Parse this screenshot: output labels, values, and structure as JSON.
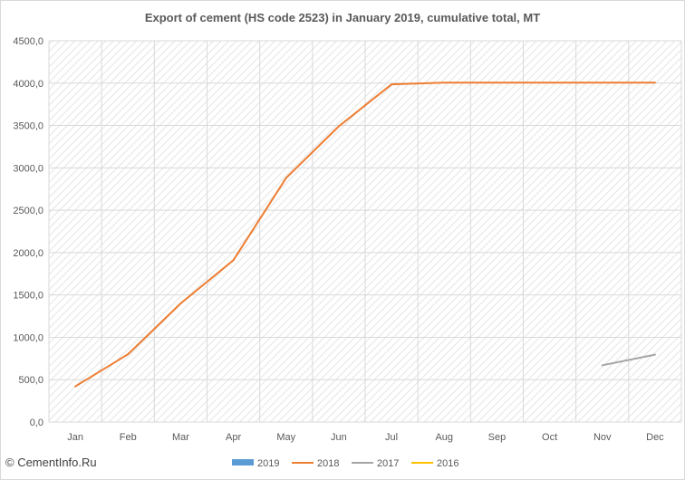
{
  "chart_data": {
    "type": "line",
    "title": "Export of cement  (HS code 2523) in January 2019, cumulative total, MT",
    "xlabel": "",
    "ylabel": "",
    "categories": [
      "Jan",
      "Feb",
      "Mar",
      "Apr",
      "May",
      "Jun",
      "Jul",
      "Aug",
      "Sep",
      "Oct",
      "Nov",
      "Dec"
    ],
    "ylim": [
      0,
      4500
    ],
    "yticks": [
      "0,0",
      "500,0",
      "1000,0",
      "1500,0",
      "2000,0",
      "2500,0",
      "3000,0",
      "3500,0",
      "4000,0",
      "4500,0"
    ],
    "ytick_values": [
      0,
      500,
      1000,
      1500,
      2000,
      2500,
      3000,
      3500,
      4000,
      4500
    ],
    "grid": true,
    "legend_position": "bottom",
    "series": [
      {
        "name": "2019",
        "color": "#5b9bd5",
        "legend_shape": "bar",
        "values": [
          null,
          null,
          null,
          null,
          null,
          null,
          null,
          null,
          null,
          null,
          null,
          null
        ]
      },
      {
        "name": "2018",
        "color": "#ed7d31",
        "legend_shape": "line",
        "values": [
          420,
          800,
          1400,
          1910,
          2880,
          3490,
          3985,
          4005,
          4005,
          4005,
          4005,
          4005
        ]
      },
      {
        "name": "2017",
        "color": "#a5a5a5",
        "legend_shape": "line",
        "values": [
          null,
          null,
          null,
          null,
          null,
          null,
          null,
          null,
          null,
          null,
          670,
          795
        ]
      },
      {
        "name": "2016",
        "color": "#ffc000",
        "legend_shape": "line",
        "values": [
          null,
          null,
          null,
          null,
          null,
          null,
          null,
          null,
          null,
          null,
          null,
          null
        ]
      }
    ]
  },
  "watermark": "© CementInfo.Ru"
}
